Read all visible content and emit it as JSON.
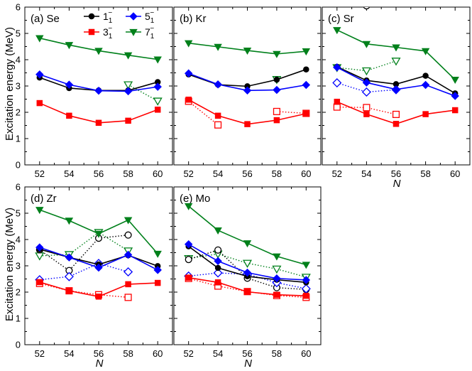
{
  "chart_data": {
    "type": "line",
    "ylabel": "Excitation energy (MeV)",
    "xlabel": "N",
    "x_ticks": [
      52,
      54,
      56,
      58,
      60
    ],
    "y_ticks": [
      0,
      1,
      2,
      3,
      4,
      5,
      6
    ],
    "xlim": [
      51,
      61
    ],
    "ylim": [
      0,
      6
    ],
    "legend": {
      "placement": "top-center of panel (a)",
      "entries": [
        {
          "key": "1",
          "base": "1",
          "sub": "1",
          "sup": "−",
          "color": "#000000",
          "marker": "circle"
        },
        {
          "key": "5",
          "base": "5",
          "sub": "1",
          "sup": "−",
          "color": "#0000ff",
          "marker": "diamond"
        },
        {
          "key": "3",
          "base": "3",
          "sub": "1",
          "sup": "−",
          "color": "#ff0000",
          "marker": "square"
        },
        {
          "key": "7",
          "base": "7",
          "sub": "1",
          "sup": "−",
          "color": "#00801b",
          "marker": "triangle-down"
        }
      ]
    },
    "note": "Filled markers with solid lines: first series; open markers with dotted lines: second series",
    "panels": [
      {
        "label": "(a) Se",
        "series": [
          {
            "key": "1",
            "style": "solid",
            "x": [
              52,
              54,
              56,
              58,
              60
            ],
            "y": [
              3.32,
              2.92,
              2.83,
              2.83,
              3.15
            ]
          },
          {
            "key": "5",
            "style": "solid",
            "x": [
              52,
              54,
              56,
              58,
              60
            ],
            "y": [
              3.44,
              3.05,
              2.82,
              2.8,
              2.97
            ]
          },
          {
            "key": "3",
            "style": "solid",
            "x": [
              52,
              54,
              56,
              58,
              60
            ],
            "y": [
              2.35,
              1.87,
              1.6,
              1.68,
              2.1
            ]
          },
          {
            "key": "7",
            "style": "solid",
            "x": [
              52,
              54,
              56,
              58,
              60
            ],
            "y": [
              4.82,
              4.56,
              4.34,
              4.17,
              4.01
            ]
          },
          {
            "key": "7",
            "style": "dotted",
            "x": [
              58,
              60
            ],
            "y": [
              3.05,
              2.43
            ]
          }
        ]
      },
      {
        "label": "(b) Kr",
        "series": [
          {
            "key": "1",
            "style": "solid",
            "x": [
              52,
              54,
              56,
              58,
              60
            ],
            "y": [
              3.44,
              3.05,
              2.99,
              3.24,
              3.63
            ]
          },
          {
            "key": "5",
            "style": "solid",
            "x": [
              52,
              54,
              56,
              58,
              60
            ],
            "y": [
              3.48,
              3.06,
              2.83,
              2.85,
              3.04
            ]
          },
          {
            "key": "3",
            "style": "solid",
            "x": [
              52,
              54,
              56,
              58,
              60
            ],
            "y": [
              2.48,
              1.87,
              1.55,
              1.7,
              1.95
            ]
          },
          {
            "key": "7",
            "style": "solid",
            "x": [
              52,
              54,
              56,
              58,
              60
            ],
            "y": [
              4.63,
              4.49,
              4.35,
              4.22,
              4.32
            ]
          },
          {
            "key": "7",
            "style": "dotted",
            "x": [
              58
            ],
            "y": [
              3.25
            ]
          },
          {
            "key": "3",
            "style": "dotted",
            "x": [
              52,
              54
            ],
            "y": [
              2.42,
              1.52
            ]
          },
          {
            "key": "3",
            "style": "dotted",
            "x": [
              58,
              60
            ],
            "y": [
              2.03,
              1.96
            ]
          }
        ]
      },
      {
        "label": "(c) Sr",
        "series": [
          {
            "key": "1",
            "style": "solid",
            "x": [
              52,
              54,
              56,
              58,
              60
            ],
            "y": [
              3.73,
              3.21,
              3.07,
              3.39,
              2.72
            ]
          },
          {
            "key": "5",
            "style": "solid",
            "x": [
              52,
              54,
              56,
              58,
              60
            ],
            "y": [
              3.71,
              3.13,
              2.87,
              3.04,
              2.62
            ]
          },
          {
            "key": "3",
            "style": "solid",
            "x": [
              52,
              54,
              56,
              58,
              60
            ],
            "y": [
              2.4,
              1.93,
              1.56,
              1.93,
              2.08
            ]
          },
          {
            "key": "7",
            "style": "solid",
            "x": [
              52,
              54,
              56,
              58,
              60
            ],
            "y": [
              5.13,
              4.6,
              4.47,
              4.33,
              3.24
            ]
          },
          {
            "key": "7",
            "style": "dotted",
            "x": [
              52,
              54,
              56
            ],
            "y": [
              3.7,
              3.58,
              3.95
            ]
          },
          {
            "key": "5",
            "style": "dotted",
            "x": [
              52,
              54,
              56
            ],
            "y": [
              3.12,
              2.77,
              2.86
            ]
          },
          {
            "key": "3",
            "style": "dotted",
            "x": [
              52,
              54,
              56
            ],
            "y": [
              2.2,
              2.18,
              1.92
            ]
          },
          {
            "key": "1",
            "style": "dotted",
            "x": [
              54
            ],
            "y": [
              6.05
            ]
          }
        ]
      },
      {
        "label": "(d) Zr",
        "series": [
          {
            "key": "1",
            "style": "solid",
            "x": [
              52,
              54,
              56,
              58,
              60
            ],
            "y": [
              3.63,
              3.32,
              3.05,
              3.4,
              2.99
            ]
          },
          {
            "key": "5",
            "style": "solid",
            "x": [
              52,
              54,
              56,
              58,
              60
            ],
            "y": [
              3.7,
              3.32,
              2.93,
              3.42,
              2.84
            ]
          },
          {
            "key": "3",
            "style": "solid",
            "x": [
              52,
              54,
              56,
              58,
              60
            ],
            "y": [
              2.38,
              2.05,
              1.83,
              2.3,
              2.35
            ]
          },
          {
            "key": "7",
            "style": "solid",
            "x": [
              52,
              54,
              56,
              58,
              60
            ],
            "y": [
              5.13,
              4.72,
              4.22,
              4.74,
              3.46
            ]
          },
          {
            "key": "7",
            "style": "dotted",
            "x": [
              52,
              54,
              56,
              58
            ],
            "y": [
              3.38,
              3.43,
              4.27,
              3.57
            ]
          },
          {
            "key": "1",
            "style": "dotted",
            "x": [
              52,
              54,
              56,
              58
            ],
            "y": [
              3.61,
              2.82,
              4.05,
              4.17
            ]
          },
          {
            "key": "5",
            "style": "dotted",
            "x": [
              52,
              54,
              56,
              58
            ],
            "y": [
              2.47,
              2.59,
              3.09,
              2.77
            ]
          },
          {
            "key": "3",
            "style": "dotted",
            "x": [
              52,
              54,
              56,
              58
            ],
            "y": [
              2.33,
              2.05,
              1.9,
              1.8
            ]
          }
        ]
      },
      {
        "label": "(e) Mo",
        "series": [
          {
            "key": "1",
            "style": "solid",
            "x": [
              52,
              54,
              56,
              58,
              60
            ],
            "y": [
              3.74,
              2.92,
              2.6,
              2.47,
              2.37
            ]
          },
          {
            "key": "5",
            "style": "solid",
            "x": [
              52,
              54,
              56,
              58,
              60
            ],
            "y": [
              3.82,
              3.18,
              2.74,
              2.52,
              2.46
            ]
          },
          {
            "key": "3",
            "style": "solid",
            "x": [
              52,
              54,
              56,
              58,
              60
            ],
            "y": [
              2.55,
              2.37,
              2.01,
              1.9,
              1.86
            ]
          },
          {
            "key": "7",
            "style": "solid",
            "x": [
              52,
              54,
              56,
              58,
              60
            ],
            "y": [
              5.27,
              4.35,
              3.86,
              3.36,
              3.04
            ]
          },
          {
            "key": "7",
            "style": "dotted",
            "x": [
              52,
              54,
              56,
              58,
              60
            ],
            "y": [
              3.28,
              3.45,
              3.1,
              2.88,
              2.57
            ]
          },
          {
            "key": "1",
            "style": "dotted",
            "x": [
              52,
              54,
              56,
              58,
              60
            ],
            "y": [
              3.24,
              3.6,
              2.53,
              2.17,
              2.1
            ]
          },
          {
            "key": "5",
            "style": "dotted",
            "x": [
              52,
              54,
              56,
              58,
              60
            ],
            "y": [
              2.61,
              2.73,
              2.68,
              2.36,
              2.13
            ]
          },
          {
            "key": "3",
            "style": "dotted",
            "x": [
              52,
              54,
              56,
              58,
              60
            ],
            "y": [
              2.52,
              2.23,
              2.02,
              1.87,
              1.8
            ]
          }
        ]
      }
    ]
  }
}
